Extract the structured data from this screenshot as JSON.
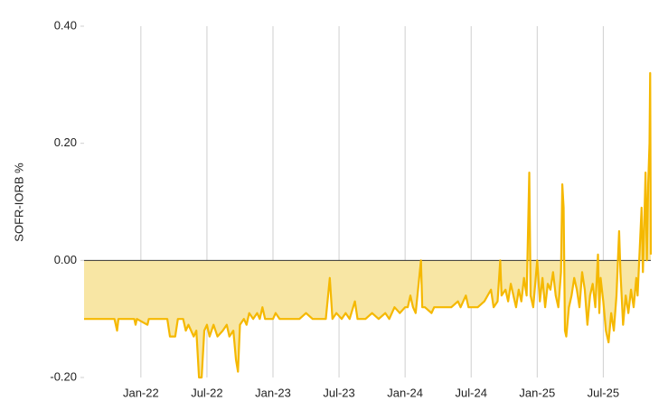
{
  "chart_data": {
    "type": "area",
    "y_label": "SOFR-IORB %",
    "color": "#f5b800",
    "fill_color": "#f8e6a4",
    "xlim": [
      2021.57,
      2025.86
    ],
    "xticks": [
      {
        "value": 2022,
        "label": "Jan-22"
      },
      {
        "value": 2022.5,
        "label": "Jul-22"
      },
      {
        "value": 2023,
        "label": "Jan-23"
      },
      {
        "value": 2023.5,
        "label": "Jul-23"
      },
      {
        "value": 2024,
        "label": "Jan-24"
      },
      {
        "value": 2024.5,
        "label": "Jul-24"
      },
      {
        "value": 2025,
        "label": "Jan-25"
      },
      {
        "value": 2025.5,
        "label": "Jul-25"
      }
    ],
    "ylim": [
      -0.2,
      0.4
    ],
    "yticks": [
      {
        "value": -0.2,
        "label": "-0.20"
      },
      {
        "value": 0,
        "label": "0.00"
      },
      {
        "value": 0.2,
        "label": "0.20"
      },
      {
        "value": 0.4,
        "label": "0.40"
      }
    ],
    "x_grid": true,
    "x": [
      2021.57,
      2021.8,
      2021.82,
      2021.83,
      2021.95,
      2021.96,
      2021.97,
      2022.05,
      2022.06,
      2022.2,
      2022.22,
      2022.26,
      2022.28,
      2022.32,
      2022.34,
      2022.36,
      2022.4,
      2022.42,
      2022.44,
      2022.46,
      2022.48,
      2022.5,
      2022.52,
      2022.55,
      2022.58,
      2022.62,
      2022.65,
      2022.67,
      2022.7,
      2022.72,
      2022.735,
      2022.75,
      2022.78,
      2022.8,
      2022.82,
      2022.85,
      2022.88,
      2022.9,
      2022.92,
      2022.94,
      2023.0,
      2023.02,
      2023.05,
      2023.2,
      2023.25,
      2023.3,
      2023.4,
      2023.43,
      2023.45,
      2023.48,
      2023.52,
      2023.55,
      2023.58,
      2023.62,
      2023.64,
      2023.7,
      2023.75,
      2023.8,
      2023.85,
      2023.88,
      2023.92,
      2023.96,
      2024.0,
      2024.02,
      2024.04,
      2024.06,
      2024.08,
      2024.12,
      2024.13,
      2024.15,
      2024.2,
      2024.22,
      2024.3,
      2024.35,
      2024.4,
      2024.42,
      2024.46,
      2024.48,
      2024.55,
      2024.6,
      2024.65,
      2024.67,
      2024.7,
      2024.72,
      2024.73,
      2024.76,
      2024.78,
      2024.8,
      2024.82,
      2024.84,
      2024.86,
      2024.88,
      2024.9,
      2024.92,
      2024.94,
      2024.95,
      2024.97,
      2025.0,
      2025.02,
      2025.04,
      2025.06,
      2025.08,
      2025.1,
      2025.12,
      2025.14,
      2025.16,
      2025.18,
      2025.19,
      2025.2,
      2025.21,
      2025.22,
      2025.24,
      2025.26,
      2025.28,
      2025.3,
      2025.32,
      2025.34,
      2025.36,
      2025.38,
      2025.4,
      2025.42,
      2025.44,
      2025.46,
      2025.47,
      2025.48,
      2025.5,
      2025.52,
      2025.54,
      2025.56,
      2025.58,
      2025.6,
      2025.62,
      2025.63,
      2025.65,
      2025.67,
      2025.69,
      2025.71,
      2025.73,
      2025.75,
      2025.76,
      2025.78,
      2025.79,
      2025.8,
      2025.81,
      2025.82,
      2025.83,
      2025.84,
      2025.85,
      2025.855,
      2025.86
    ],
    "values": [
      -0.1,
      -0.1,
      -0.12,
      -0.1,
      -0.1,
      -0.11,
      -0.1,
      -0.11,
      -0.1,
      -0.1,
      -0.13,
      -0.13,
      -0.1,
      -0.1,
      -0.12,
      -0.11,
      -0.13,
      -0.12,
      -0.2,
      -0.2,
      -0.12,
      -0.11,
      -0.13,
      -0.11,
      -0.13,
      -0.12,
      -0.11,
      -0.13,
      -0.12,
      -0.17,
      -0.19,
      -0.11,
      -0.1,
      -0.11,
      -0.09,
      -0.1,
      -0.09,
      -0.1,
      -0.08,
      -0.1,
      -0.1,
      -0.09,
      -0.1,
      -0.1,
      -0.09,
      -0.1,
      -0.1,
      -0.03,
      -0.1,
      -0.09,
      -0.1,
      -0.09,
      -0.1,
      -0.07,
      -0.1,
      -0.1,
      -0.09,
      -0.1,
      -0.09,
      -0.1,
      -0.08,
      -0.09,
      -0.08,
      -0.08,
      -0.06,
      -0.08,
      -0.09,
      0.0,
      -0.08,
      -0.08,
      -0.09,
      -0.08,
      -0.08,
      -0.08,
      -0.07,
      -0.08,
      -0.06,
      -0.08,
      -0.08,
      -0.07,
      -0.05,
      -0.08,
      -0.07,
      0.0,
      -0.06,
      -0.05,
      -0.07,
      -0.04,
      -0.06,
      -0.08,
      -0.05,
      -0.07,
      -0.03,
      -0.06,
      0.15,
      -0.06,
      -0.08,
      0.0,
      -0.07,
      -0.03,
      -0.08,
      -0.04,
      -0.05,
      -0.02,
      -0.06,
      -0.08,
      -0.02,
      0.13,
      0.09,
      -0.12,
      -0.13,
      -0.08,
      -0.06,
      -0.03,
      -0.05,
      -0.08,
      -0.02,
      -0.05,
      -0.11,
      -0.06,
      -0.04,
      -0.08,
      0.01,
      -0.09,
      -0.03,
      -0.07,
      -0.12,
      -0.14,
      -0.09,
      -0.12,
      -0.06,
      0.05,
      -0.02,
      -0.11,
      -0.06,
      -0.09,
      -0.05,
      -0.08,
      -0.03,
      -0.06,
      0.04,
      0.09,
      -0.02,
      0.06,
      0.15,
      0.0,
      0.13,
      0.2,
      0.32,
      0.01
    ]
  }
}
